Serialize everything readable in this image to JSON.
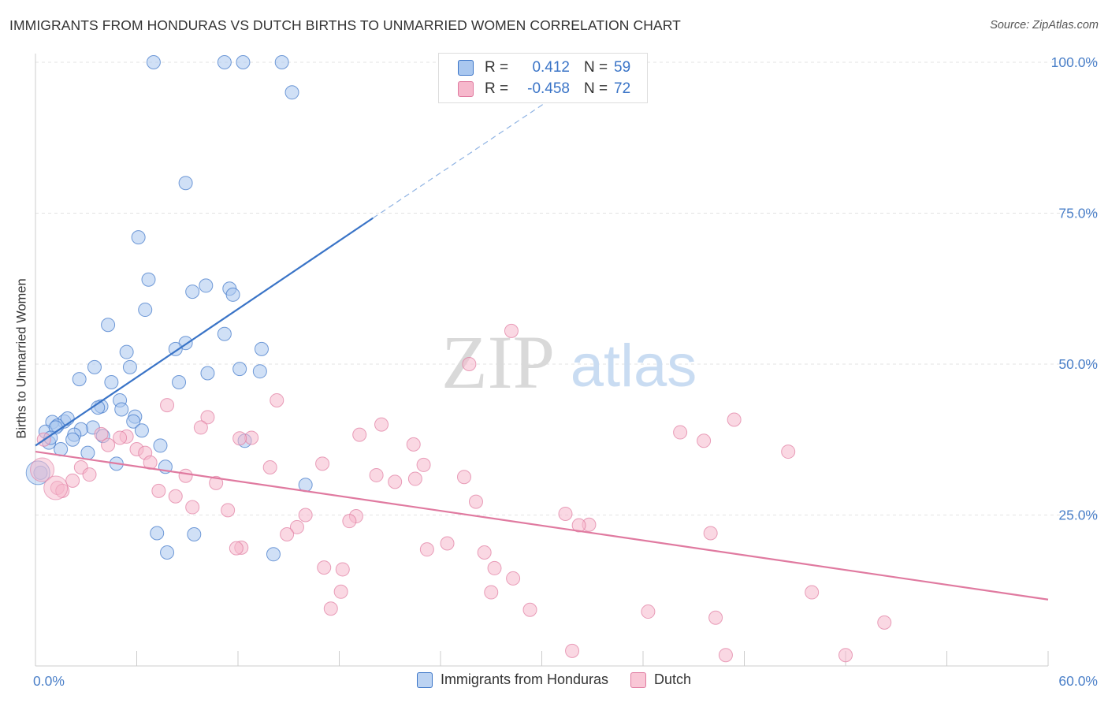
{
  "chart_data": {
    "type": "scatter",
    "title": "IMMIGRANTS FROM HONDURAS VS DUTCH BIRTHS TO UNMARRIED WOMEN CORRELATION CHART",
    "source": "Source: ZipAtlas.com",
    "ylabel": "Births to Unmarried Women",
    "xlabel": "",
    "watermark": {
      "zip": "ZIP",
      "atlas": "atlas"
    },
    "xlim": [
      0,
      60
    ],
    "ylim": [
      0,
      104
    ],
    "y_ticks": [
      {
        "value": 25,
        "label": "25.0%"
      },
      {
        "value": 50,
        "label": "50.0%"
      },
      {
        "value": 75,
        "label": "75.0%"
      },
      {
        "value": 100,
        "label": "100.0%"
      }
    ],
    "x_tick_labels": [
      {
        "value": 0,
        "label": "0.0%"
      },
      {
        "value": 60,
        "label": "60.0%"
      }
    ],
    "x_minor_ticks": [
      0,
      6,
      12,
      18,
      24,
      30,
      36,
      42,
      48,
      54,
      60
    ],
    "legend_stats": [
      {
        "r_label": "R =",
        "r_value": "0.412",
        "n_label": "N =",
        "n_value": "59"
      },
      {
        "r_label": "R =",
        "r_value": "-0.458",
        "n_label": "N =",
        "n_value": "72"
      }
    ],
    "series": [
      {
        "name": "Immigrants from Honduras",
        "color": "#3a74c7",
        "fill": "#a9c7ef",
        "trend": {
          "x0": 0,
          "y0": 36.5,
          "x1": 20,
          "y1": 74.2,
          "dash_x1": 33,
          "dash_y1": 98.5
        },
        "points": [
          [
            7,
            100
          ],
          [
            11.2,
            100
          ],
          [
            12.3,
            100
          ],
          [
            14.6,
            100
          ],
          [
            15.2,
            95
          ],
          [
            8.9,
            80
          ],
          [
            6.1,
            71
          ],
          [
            6.7,
            64
          ],
          [
            10.1,
            63
          ],
          [
            11.5,
            62.5
          ],
          [
            9.3,
            62
          ],
          [
            11.7,
            61.5
          ],
          [
            6.5,
            59
          ],
          [
            4.3,
            56.5
          ],
          [
            11.2,
            55
          ],
          [
            8.9,
            53.5
          ],
          [
            8.3,
            52.5
          ],
          [
            13.4,
            52.5
          ],
          [
            5.4,
            52
          ],
          [
            5.6,
            49.5
          ],
          [
            3.5,
            49.5
          ],
          [
            12.1,
            49.2
          ],
          [
            13.3,
            48.8
          ],
          [
            10.2,
            48.5
          ],
          [
            2.6,
            47.5
          ],
          [
            4.5,
            47
          ],
          [
            8.5,
            47
          ],
          [
            5.0,
            44
          ],
          [
            3.9,
            43
          ],
          [
            3.7,
            42.8
          ],
          [
            5.1,
            42.5
          ],
          [
            5.9,
            41.3
          ],
          [
            5.8,
            40.5
          ],
          [
            1.7,
            40.5
          ],
          [
            1.0,
            40.4
          ],
          [
            1.3,
            39.8
          ],
          [
            3.4,
            39.5
          ],
          [
            2.7,
            39.2
          ],
          [
            6.3,
            39.0
          ],
          [
            0.6,
            38.8
          ],
          [
            2.3,
            38.3
          ],
          [
            4.0,
            38.1
          ],
          [
            2.2,
            37.5
          ],
          [
            0.8,
            37.0
          ],
          [
            7.4,
            36.5
          ],
          [
            12.4,
            37.3
          ],
          [
            1.5,
            35.9
          ],
          [
            3.1,
            35.3
          ],
          [
            4.8,
            33.5
          ],
          [
            7.7,
            33.0
          ],
          [
            0.3,
            32.0
          ],
          [
            16.0,
            30.0
          ],
          [
            7.2,
            22.0
          ],
          [
            9.4,
            21.8
          ],
          [
            7.8,
            18.8
          ],
          [
            14.1,
            18.5
          ],
          [
            1.2,
            39.5
          ],
          [
            0.9,
            37.8
          ],
          [
            1.9,
            41
          ]
        ],
        "big_points": [
          [
            0.15,
            32.0
          ]
        ]
      },
      {
        "name": "Dutch",
        "color": "#e07aa0",
        "fill": "#f6b8cc",
        "trend": {
          "x0": 0,
          "y0": 35.5,
          "x1": 60,
          "y1": 11.0
        },
        "points": [
          [
            28.2,
            55.5
          ],
          [
            25.7,
            50.0
          ],
          [
            14.3,
            44.0
          ],
          [
            7.8,
            43.2
          ],
          [
            10.2,
            41.2
          ],
          [
            41.4,
            40.8
          ],
          [
            20.5,
            40.0
          ],
          [
            9.8,
            39.5
          ],
          [
            38.2,
            38.7
          ],
          [
            19.2,
            38.3
          ],
          [
            3.9,
            38.4
          ],
          [
            5.4,
            38.0
          ],
          [
            5.0,
            37.8
          ],
          [
            12.8,
            37.8
          ],
          [
            12.1,
            37.7
          ],
          [
            39.6,
            37.3
          ],
          [
            22.4,
            36.7
          ],
          [
            4.3,
            36.6
          ],
          [
            6.0,
            35.9
          ],
          [
            44.6,
            35.5
          ],
          [
            6.5,
            35.3
          ],
          [
            17.0,
            33.5
          ],
          [
            6.8,
            33.7
          ],
          [
            23.0,
            33.3
          ],
          [
            2.7,
            32.9
          ],
          [
            13.9,
            32.9
          ],
          [
            20.2,
            31.6
          ],
          [
            3.2,
            31.7
          ],
          [
            8.9,
            31.5
          ],
          [
            25.4,
            31.3
          ],
          [
            22.5,
            31.0
          ],
          [
            2.2,
            30.7
          ],
          [
            10.7,
            30.3
          ],
          [
            21.3,
            30.5
          ],
          [
            1.3,
            29.5
          ],
          [
            1.6,
            29.0
          ],
          [
            7.3,
            29.0
          ],
          [
            8.3,
            28.1
          ],
          [
            26.1,
            27.2
          ],
          [
            9.3,
            26.3
          ],
          [
            11.4,
            25.8
          ],
          [
            31.4,
            25.2
          ],
          [
            16.0,
            25.0
          ],
          [
            19.0,
            24.8
          ],
          [
            18.6,
            24.0
          ],
          [
            32.8,
            23.4
          ],
          [
            32.2,
            23.3
          ],
          [
            15.5,
            23.0
          ],
          [
            40.0,
            22.0
          ],
          [
            14.9,
            21.8
          ],
          [
            24.4,
            20.3
          ],
          [
            12.2,
            19.6
          ],
          [
            23.2,
            19.3
          ],
          [
            26.6,
            18.8
          ],
          [
            17.1,
            16.3
          ],
          [
            18.2,
            16.0
          ],
          [
            27.2,
            16.2
          ],
          [
            28.3,
            14.5
          ],
          [
            18.1,
            12.3
          ],
          [
            27.0,
            12.2
          ],
          [
            46.0,
            12.2
          ],
          [
            17.5,
            9.5
          ],
          [
            29.3,
            9.3
          ],
          [
            36.3,
            9.0
          ],
          [
            40.3,
            8.0
          ],
          [
            50.3,
            7.2
          ],
          [
            31.8,
            2.5
          ],
          [
            40.9,
            1.8
          ],
          [
            48.0,
            1.8
          ],
          [
            11.9,
            19.5
          ],
          [
            0.5,
            37.5
          ]
        ],
        "big_points": [
          [
            0.4,
            32.5
          ],
          [
            1.2,
            29.5
          ]
        ]
      }
    ]
  }
}
